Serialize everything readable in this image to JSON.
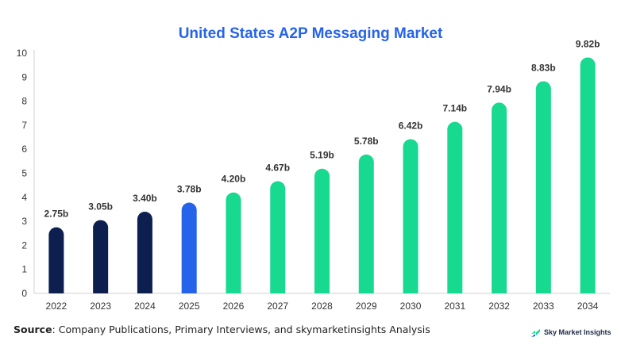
{
  "chart_data": {
    "type": "bar",
    "title": "United States A2P Messaging Market",
    "categories": [
      "2022",
      "2023",
      "2024",
      "2025",
      "2026",
      "2027",
      "2028",
      "2029",
      "2030",
      "2031",
      "2032",
      "2033",
      "2034"
    ],
    "values": [
      2.75,
      3.05,
      3.4,
      3.78,
      4.2,
      4.67,
      5.19,
      5.78,
      6.42,
      7.14,
      7.94,
      8.83,
      9.82
    ],
    "data_labels": [
      "2.75b",
      "3.05b",
      "3.40b",
      "3.78b",
      "4.20b",
      "4.67b",
      "5.19b",
      "5.78b",
      "6.42b",
      "7.14b",
      "7.94b",
      "8.83b",
      "9.82b"
    ],
    "bar_colors": [
      "#0c1f4f",
      "#0c1f4f",
      "#0c1f4f",
      "#2563eb",
      "#17d98f",
      "#17d98f",
      "#17d98f",
      "#17d98f",
      "#17d98f",
      "#17d98f",
      "#17d98f",
      "#17d98f",
      "#17d98f"
    ],
    "ylim": [
      0,
      10
    ],
    "yticks": [
      0,
      1,
      2,
      3,
      4,
      5,
      6,
      7,
      8,
      9,
      10
    ],
    "grid": false,
    "xlabel": "",
    "ylabel": ""
  },
  "footer": {
    "source_label": "Source",
    "source_text": ": Company Publications, Primary Interviews, and skymarketinsights Analysis"
  },
  "brand": {
    "name": "Sky Market Insights",
    "logo_icon": "sky-market-insights-logo-icon"
  }
}
